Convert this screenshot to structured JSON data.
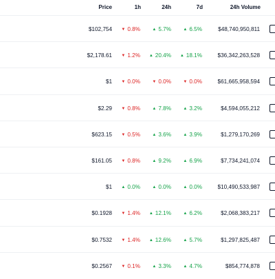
{
  "header": {
    "price": "Price",
    "h1": "1h",
    "h24": "24h",
    "d7": "7d",
    "volume": "24h Volume"
  },
  "rows": [
    {
      "price": "$102,754",
      "h1": "0.8%",
      "h1_dir": "down",
      "h24": "5.7%",
      "h24_dir": "up",
      "d7": "6.5%",
      "d7_dir": "up",
      "volume": "$48,740,950,811"
    },
    {
      "price": "$2,178.61",
      "h1": "1.2%",
      "h1_dir": "down",
      "h24": "20.4%",
      "h24_dir": "up",
      "d7": "18.1%",
      "d7_dir": "up",
      "volume": "$36,342,263,528"
    },
    {
      "price": "$1",
      "h1": "0.0%",
      "h1_dir": "down",
      "h24": "0.0%",
      "h24_dir": "down",
      "d7": "0.0%",
      "d7_dir": "down",
      "volume": "$61,665,958,594"
    },
    {
      "price": "$2.29",
      "h1": "0.8%",
      "h1_dir": "down",
      "h24": "7.8%",
      "h24_dir": "up",
      "d7": "3.2%",
      "d7_dir": "up",
      "volume": "$4,594,055,212"
    },
    {
      "price": "$623.15",
      "h1": "0.5%",
      "h1_dir": "down",
      "h24": "3.6%",
      "h24_dir": "up",
      "d7": "3.9%",
      "d7_dir": "up",
      "volume": "$1,279,170,269"
    },
    {
      "price": "$161.05",
      "h1": "0.8%",
      "h1_dir": "down",
      "h24": "9.2%",
      "h24_dir": "up",
      "d7": "6.9%",
      "d7_dir": "up",
      "volume": "$7,734,241,074"
    },
    {
      "price": "$1",
      "h1": "0.0%",
      "h1_dir": "up",
      "h24": "0.0%",
      "h24_dir": "up",
      "d7": "0.0%",
      "d7_dir": "up",
      "volume": "$10,490,533,987"
    },
    {
      "price": "$0.1928",
      "h1": "1.4%",
      "h1_dir": "down",
      "h24": "12.1%",
      "h24_dir": "up",
      "d7": "6.2%",
      "d7_dir": "up",
      "volume": "$2,068,383,217"
    },
    {
      "price": "$0.7532",
      "h1": "1.4%",
      "h1_dir": "down",
      "h24": "12.6%",
      "h24_dir": "up",
      "d7": "5.7%",
      "d7_dir": "up",
      "volume": "$1,297,825,487"
    },
    {
      "price": "$0.2567",
      "h1": "0.1%",
      "h1_dir": "down",
      "h24": "3.3%",
      "h24_dir": "up",
      "d7": "4.7%",
      "d7_dir": "up",
      "volume": "$854,774,878"
    }
  ],
  "colors": {
    "up": "#16a34a",
    "down": "#dc2626"
  },
  "icons": {
    "up": "caret-up-icon",
    "down": "caret-down-icon"
  }
}
